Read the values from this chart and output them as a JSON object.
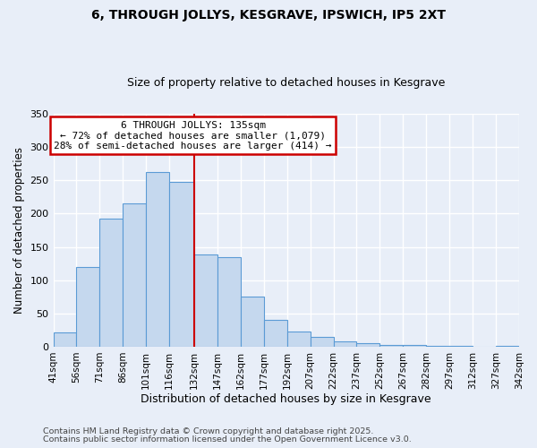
{
  "title": "6, THROUGH JOLLYS, KESGRAVE, IPSWICH, IP5 2XT",
  "subtitle": "Size of property relative to detached houses in Kesgrave",
  "xlabel": "Distribution of detached houses by size in Kesgrave",
  "ylabel": "Number of detached properties",
  "bin_edges": [
    41,
    56,
    71,
    86,
    101,
    116,
    132,
    147,
    162,
    177,
    192,
    207,
    222,
    237,
    252,
    267,
    282,
    297,
    312,
    327,
    342
  ],
  "bar_heights": [
    22,
    120,
    193,
    215,
    263,
    248,
    138,
    135,
    75,
    40,
    23,
    15,
    8,
    5,
    3,
    2,
    1,
    1,
    0,
    1
  ],
  "bar_color": "#c5d8ee",
  "bar_edge_color": "#5b9bd5",
  "vline_x": 132,
  "vline_color": "#cc0000",
  "annotation_title": "6 THROUGH JOLLYS: 135sqm",
  "annotation_line1": "← 72% of detached houses are smaller (1,079)",
  "annotation_line2": "28% of semi-detached houses are larger (414) →",
  "annotation_box_color": "#ffffff",
  "annotation_box_edge_color": "#cc0000",
  "ylim": [
    0,
    350
  ],
  "yticks": [
    0,
    50,
    100,
    150,
    200,
    250,
    300,
    350
  ],
  "background_color": "#e8eef8",
  "grid_color": "#ffffff",
  "footnote1": "Contains HM Land Registry data © Crown copyright and database right 2025.",
  "footnote2": "Contains public sector information licensed under the Open Government Licence v3.0."
}
